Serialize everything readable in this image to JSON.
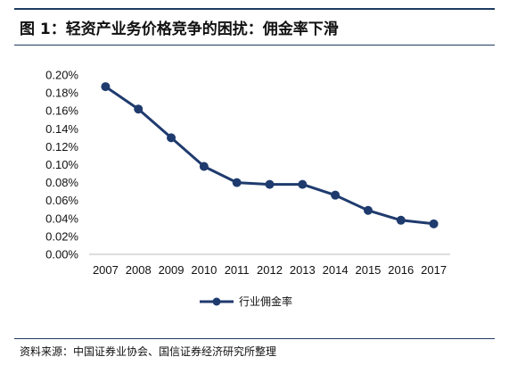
{
  "figure": {
    "title": "图 1：轻资产业务价格竞争的困扰：佣金率下滑",
    "source": "资料来源：中国证券业协会、国信证券经济研究所整理"
  },
  "chart_data": {
    "type": "line",
    "title": "",
    "xlabel": "",
    "ylabel": "",
    "categories": [
      "2007",
      "2008",
      "2009",
      "2010",
      "2011",
      "2012",
      "2013",
      "2014",
      "2015",
      "2016",
      "2017"
    ],
    "series": [
      {
        "name": "行业佣金率",
        "values": [
          0.187,
          0.162,
          0.13,
          0.098,
          0.08,
          0.078,
          0.078,
          0.066,
          0.049,
          0.038,
          0.034
        ],
        "color": "#1f3b6e"
      }
    ],
    "yticks": [
      "0.00%",
      "0.02%",
      "0.04%",
      "0.06%",
      "0.08%",
      "0.10%",
      "0.12%",
      "0.14%",
      "0.16%",
      "0.18%",
      "0.20%"
    ],
    "ylim": [
      0,
      0.2
    ],
    "y_unit": "%",
    "grid": false,
    "legend_position": "bottom-center",
    "marker": "circle"
  }
}
